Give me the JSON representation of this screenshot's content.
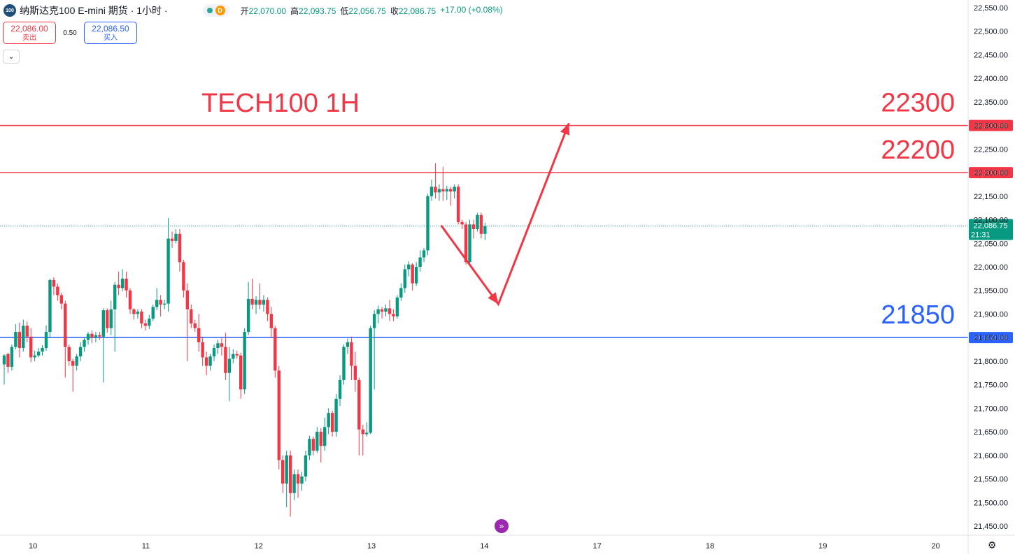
{
  "header": {
    "logo_text": "100",
    "symbol_title": "纳斯达克100 E-mini 期货 · 1小时 ·",
    "status_badge": "D",
    "ohlc": [
      {
        "label": "开",
        "value": "22,070.00"
      },
      {
        "label": "高",
        "value": "22,093.75"
      },
      {
        "label": "低",
        "value": "22,056.75"
      },
      {
        "label": "收",
        "value": "22,086.75"
      },
      {
        "label": "",
        "value": "+17.00 (+0.08%)"
      }
    ]
  },
  "trade": {
    "sell_price": "22,086.00",
    "sell_label": "卖出",
    "spread": "0.50",
    "buy_price": "22,086.50",
    "buy_label": "买入"
  },
  "colors": {
    "up": "#089981",
    "down": "#f23645",
    "resistance": "#f23645",
    "support": "#2962ff",
    "annotation_red": "#f23645",
    "annotation_blue": "#2962ff"
  },
  "chart_data": {
    "type": "candlestick",
    "title": "TECH100 1H",
    "y_ticks": [
      "21,450.00",
      "21,500.00",
      "21,550.00",
      "21,600.00",
      "21,650.00",
      "21,700.00",
      "21,750.00",
      "21,800.00",
      "21,850.00",
      "21,900.00",
      "21,950.00",
      "22,000.00",
      "22,050.00",
      "22,100.00",
      "22,150.00",
      "22,200.00",
      "22,250.00",
      "22,300.00",
      "22,350.00",
      "22,400.00",
      "22,450.00",
      "22,500.00",
      "22,550.00"
    ],
    "y_tick_values": [
      21450,
      21500,
      21550,
      21600,
      21650,
      21700,
      21750,
      21800,
      21850,
      21900,
      21950,
      22000,
      22050,
      22100,
      22150,
      22200,
      22250,
      22300,
      22350,
      22400,
      22450,
      22500,
      22550
    ],
    "ylim": [
      21425,
      22570
    ],
    "x_ticks": [
      "10",
      "11",
      "12",
      "13",
      "14",
      "17",
      "18",
      "19",
      "20"
    ],
    "x_range": [
      0,
      168
    ],
    "x_tick_positions": [
      2,
      22,
      42,
      62,
      82,
      102,
      122,
      142,
      162
    ],
    "horizontal_levels": [
      {
        "value": 22300,
        "label": "22,300.00",
        "annotation": "22300",
        "color": "#f23645"
      },
      {
        "value": 22200,
        "label": "22,200.00",
        "annotation": "22200",
        "color": "#f23645"
      },
      {
        "value": 21850,
        "label": "21,850.00",
        "annotation": "21850",
        "color": "#2962ff"
      }
    ],
    "last_price": {
      "value": 22086.75,
      "label": "22,086.75",
      "countdown": "21:31"
    },
    "arrow_path": [
      {
        "x": 114.5,
        "y": 22088
      },
      {
        "x": 129.5,
        "y": 21921
      },
      {
        "x": 148,
        "y": 22305
      }
    ],
    "candles": [
      [
        21793,
        21812,
        21750,
        21815
      ],
      [
        21815,
        21788,
        21775,
        21818
      ],
      [
        21788,
        21830,
        21780,
        21835
      ],
      [
        21830,
        21862,
        21825,
        21878
      ],
      [
        21862,
        21828,
        21808,
        21882
      ],
      [
        21828,
        21875,
        21820,
        21888
      ],
      [
        21875,
        21852,
        21840,
        21884
      ],
      [
        21852,
        21808,
        21798,
        21870
      ],
      [
        21808,
        21812,
        21800,
        21822
      ],
      [
        21812,
        21820,
        21808,
        21828
      ],
      [
        21820,
        21828,
        21812,
        21834
      ],
      [
        21828,
        21862,
        21822,
        21876
      ],
      [
        21862,
        21972,
        21850,
        21975
      ],
      [
        21972,
        21958,
        21940,
        21978
      ],
      [
        21958,
        21940,
        21928,
        21965
      ],
      [
        21940,
        21922,
        21910,
        21945
      ],
      [
        21922,
        21830,
        21765,
        21928
      ],
      [
        21830,
        21800,
        21790,
        21835
      ],
      [
        21800,
        21790,
        21735,
        21805
      ],
      [
        21790,
        21810,
        21780,
        21815
      ],
      [
        21810,
        21830,
        21800,
        21840
      ],
      [
        21830,
        21845,
        21820,
        21850
      ],
      [
        21845,
        21858,
        21835,
        21862
      ],
      [
        21858,
        21850,
        21838,
        21865
      ],
      [
        21850,
        21855,
        21840,
        21862
      ],
      [
        21855,
        21852,
        21845,
        21862
      ],
      [
        21852,
        21908,
        21755,
        21912
      ],
      [
        21908,
        21870,
        21860,
        21912
      ],
      [
        21870,
        21910,
        21855,
        21928
      ],
      [
        21910,
        21962,
        21820,
        21968
      ],
      [
        21962,
        21955,
        21940,
        21990
      ],
      [
        21955,
        21975,
        21948,
        21995
      ],
      [
        21975,
        21950,
        21935,
        21990
      ],
      [
        21950,
        21910,
        21900,
        21955
      ],
      [
        21910,
        21900,
        21888,
        21912
      ],
      [
        21900,
        21905,
        21890,
        21910
      ],
      [
        21905,
        21880,
        21870,
        21910
      ],
      [
        21880,
        21875,
        21865,
        21888
      ],
      [
        21875,
        21890,
        21868,
        21898
      ],
      [
        21890,
        21915,
        21885,
        21920
      ],
      [
        21915,
        21930,
        21908,
        21955
      ],
      [
        21930,
        21920,
        21895,
        21940
      ],
      [
        21920,
        21922,
        21910,
        21930
      ],
      [
        21922,
        22060,
        21905,
        22104
      ],
      [
        22060,
        22055,
        22040,
        22075
      ],
      [
        22055,
        22070,
        22050,
        22080
      ],
      [
        22070,
        22010,
        21990,
        22080
      ],
      [
        22010,
        21950,
        21935,
        22015
      ],
      [
        21950,
        21910,
        21800,
        21965
      ],
      [
        21910,
        21880,
        21870,
        21920
      ],
      [
        21880,
        21870,
        21862,
        21888
      ],
      [
        21870,
        21840,
        21820,
        21900
      ],
      [
        21840,
        21808,
        21790,
        21852
      ],
      [
        21808,
        21790,
        21770,
        21820
      ],
      [
        21790,
        21810,
        21780,
        21815
      ],
      [
        21810,
        21828,
        21800,
        21835
      ],
      [
        21828,
        21838,
        21815,
        21845
      ],
      [
        21838,
        21830,
        21812,
        21850
      ],
      [
        21830,
        21775,
        21760,
        21860
      ],
      [
        21775,
        21805,
        21715,
        21830
      ],
      [
        21805,
        21815,
        21795,
        21825
      ],
      [
        21815,
        21812,
        21805,
        21822
      ],
      [
        21812,
        21740,
        21720,
        21818
      ],
      [
        21740,
        21862,
        21730,
        21870
      ],
      [
        21862,
        21932,
        21855,
        21968
      ],
      [
        21932,
        21920,
        21910,
        21975
      ],
      [
        21920,
        21930,
        21900,
        21938
      ],
      [
        21930,
        21920,
        21910,
        21965
      ],
      [
        21920,
        21930,
        21905,
        21940
      ],
      [
        21930,
        21900,
        21885,
        21935
      ],
      [
        21900,
        21870,
        21850,
        21915
      ],
      [
        21870,
        21780,
        21765,
        21875
      ],
      [
        21780,
        21590,
        21570,
        21790
      ],
      [
        21590,
        21540,
        21520,
        21600
      ],
      [
        21540,
        21600,
        21490,
        21610
      ],
      [
        21600,
        21520,
        21470,
        21610
      ],
      [
        21520,
        21560,
        21505,
        21570
      ],
      [
        21560,
        21540,
        21510,
        21570
      ],
      [
        21540,
        21555,
        21525,
        21565
      ],
      [
        21555,
        21600,
        21545,
        21610
      ],
      [
        21600,
        21635,
        21590,
        21642
      ],
      [
        21635,
        21610,
        21600,
        21640
      ],
      [
        21610,
        21650,
        21605,
        21660
      ],
      [
        21650,
        21620,
        21585,
        21658
      ],
      [
        21620,
        21660,
        21610,
        21680
      ],
      [
        21660,
        21690,
        21645,
        21700
      ],
      [
        21690,
        21650,
        21640,
        21695
      ],
      [
        21650,
        21720,
        21640,
        21730
      ],
      [
        21720,
        21760,
        21705,
        21770
      ],
      [
        21760,
        21830,
        21750,
        21835
      ],
      [
        21830,
        21840,
        21815,
        21848
      ],
      [
        21840,
        21790,
        21760,
        21852
      ],
      [
        21790,
        21760,
        21735,
        21820
      ],
      [
        21760,
        21655,
        21600,
        21765
      ],
      [
        21655,
        21645,
        21600,
        21665
      ],
      [
        21645,
        21648,
        21640,
        21670
      ],
      [
        21648,
        21870,
        21645,
        21875
      ],
      [
        21870,
        21900,
        21740,
        21908
      ],
      [
        21900,
        21910,
        21880,
        21918
      ],
      [
        21910,
        21905,
        21890,
        21915
      ],
      [
        21905,
        21912,
        21895,
        21920
      ],
      [
        21912,
        21900,
        21885,
        21930
      ],
      [
        21900,
        21895,
        21885,
        21910
      ],
      [
        21895,
        21935,
        21890,
        21940
      ],
      [
        21935,
        21955,
        21928,
        21965
      ],
      [
        21955,
        21995,
        21945,
        22005
      ],
      [
        21995,
        22005,
        21980,
        22012
      ],
      [
        22005,
        21965,
        21950,
        22008
      ],
      [
        21965,
        22000,
        21960,
        22010
      ],
      [
        22000,
        22020,
        21990,
        22035
      ],
      [
        22020,
        22035,
        22010,
        22040
      ],
      [
        22035,
        22150,
        22025,
        22155
      ],
      [
        22150,
        22170,
        22140,
        22185
      ],
      [
        22170,
        22158,
        22145,
        22220
      ],
      [
        22158,
        22165,
        22140,
        22175
      ],
      [
        22165,
        22160,
        22140,
        22212
      ],
      [
        22160,
        22165,
        22142,
        22172
      ],
      [
        22165,
        22160,
        22130,
        22170
      ],
      [
        22160,
        22170,
        22145,
        22175
      ],
      [
        22170,
        22095,
        22090,
        22175
      ],
      [
        22095,
        22090,
        22080,
        22100
      ],
      [
        22090,
        22010,
        22005,
        22095
      ],
      [
        22010,
        22090,
        22005,
        22100
      ],
      [
        22090,
        22080,
        22060,
        22100
      ],
      [
        22080,
        22110,
        22075,
        22115
      ],
      [
        22110,
        22070,
        22060,
        22115
      ],
      [
        22070,
        22086.75,
        22056.75,
        22093.75
      ]
    ],
    "candle_start_x": 0
  },
  "ui": {
    "collapse_icon": "chevron-down-icon",
    "goto_icon": "goto-realtime-icon",
    "settings_icon": "gear-icon"
  }
}
